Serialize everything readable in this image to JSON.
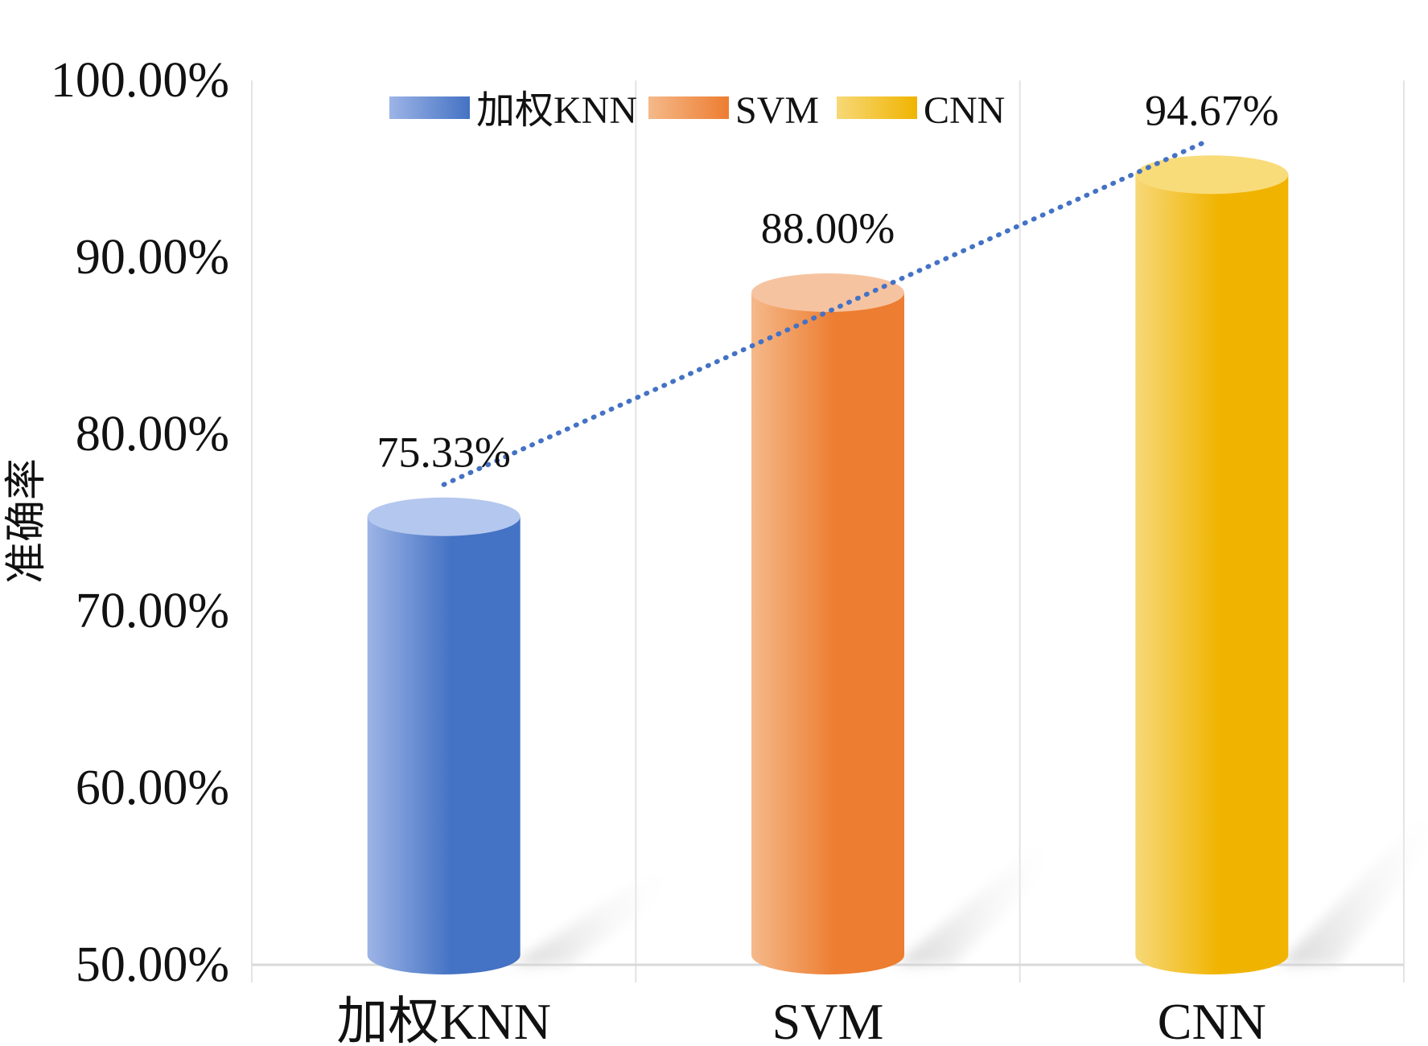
{
  "chart_data": {
    "type": "bar",
    "categories": [
      "加权KNN",
      "SVM",
      "CNN"
    ],
    "values": [
      75.33,
      88.0,
      94.67
    ],
    "value_labels": [
      "75.33%",
      "88.00%",
      "94.67%"
    ],
    "title": "",
    "xlabel": "",
    "ylabel": "准确率",
    "ylim": [
      50,
      100
    ],
    "yticks": [
      50,
      60,
      70,
      80,
      90,
      100
    ],
    "ytick_labels": [
      "50.00%",
      "60.00%",
      "70.00%",
      "80.00%",
      "90.00%",
      "100.00%"
    ],
    "legend": {
      "position": "top",
      "entries": [
        "加权KNN",
        "SVM",
        "CNN"
      ]
    },
    "trendline": {
      "style": "dotted",
      "color": "#4472C4"
    },
    "grid": "vertical",
    "colors": {
      "加权KNN": {
        "light": "#9DB4E6",
        "dark": "#4472C4",
        "top": "#B4C7EE"
      },
      "SVM": {
        "light": "#F5B98A",
        "dark": "#ED7D31",
        "top": "#F6C3A0"
      },
      "CNN": {
        "light": "#F7D878",
        "dark": "#F0B400",
        "top": "#F9DC7A"
      }
    }
  }
}
